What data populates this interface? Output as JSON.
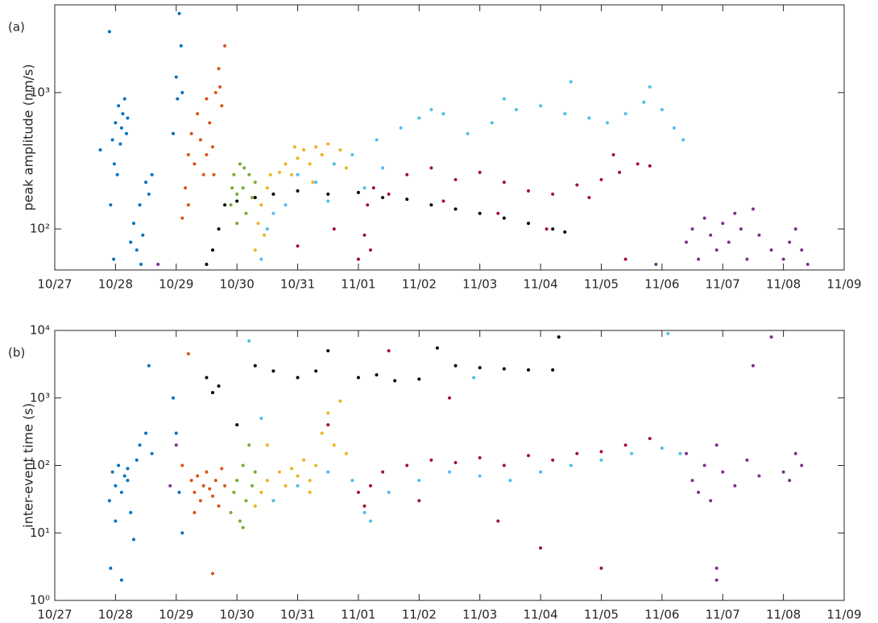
{
  "chart_data": [
    {
      "type": "scatter",
      "panel_label": "(a)",
      "ylabel": "peak amplitude (nm/s)",
      "log_y": true,
      "xlim": [
        27,
        40
      ],
      "xticks": [
        {
          "value": 27,
          "label": "10/27"
        },
        {
          "value": 28,
          "label": "10/28"
        },
        {
          "value": 29,
          "label": "10/29"
        },
        {
          "value": 30,
          "label": "10/30"
        },
        {
          "value": 31,
          "label": "10/31"
        },
        {
          "value": 32,
          "label": "11/01"
        },
        {
          "value": 33,
          "label": "11/02"
        },
        {
          "value": 34,
          "label": "11/03"
        },
        {
          "value": 35,
          "label": "11/04"
        },
        {
          "value": 36,
          "label": "11/05"
        },
        {
          "value": 37,
          "label": "11/06"
        },
        {
          "value": 38,
          "label": "11/07"
        },
        {
          "value": 39,
          "label": "11/08"
        },
        {
          "value": 40,
          "label": "11/09"
        }
      ],
      "ylim": [
        50,
        4400
      ],
      "yticks": [
        {
          "value": 100,
          "label": "10²"
        },
        {
          "value": 1000,
          "label": "10³"
        }
      ],
      "series": [
        {
          "color": "#0072BD",
          "x": [
            27.75,
            27.9,
            27.92,
            27.95,
            27.98,
            28.0,
            28.03,
            28.05,
            28.08,
            28.1,
            28.12,
            28.15,
            28.18,
            28.2,
            28.25,
            28.3,
            28.35,
            28.4,
            28.45,
            28.5,
            28.55,
            28.6,
            28.95,
            29.0,
            29.02,
            29.05,
            29.08,
            29.1,
            27.97,
            28.42
          ],
          "values": [
            380,
            2800,
            150,
            450,
            300,
            600,
            250,
            800,
            420,
            550,
            700,
            900,
            500,
            650,
            80,
            110,
            70,
            150,
            90,
            220,
            180,
            250,
            500,
            1300,
            900,
            3800,
            2200,
            1000,
            60,
            55
          ]
        },
        {
          "color": "#D95319",
          "x": [
            29.1,
            29.15,
            29.2,
            29.25,
            29.3,
            29.35,
            29.4,
            29.45,
            29.5,
            29.55,
            29.6,
            29.65,
            29.7,
            29.75,
            29.8,
            29.2,
            29.5,
            29.62,
            29.72
          ],
          "values": [
            120,
            200,
            350,
            500,
            300,
            700,
            450,
            250,
            900,
            600,
            400,
            1000,
            1500,
            800,
            2200,
            150,
            350,
            250,
            1100
          ]
        },
        {
          "color": "#77AC30",
          "x": [
            29.9,
            29.95,
            30.0,
            30.05,
            30.1,
            30.15,
            30.2,
            30.0,
            30.25,
            30.3,
            29.92,
            30.12
          ],
          "values": [
            150,
            250,
            180,
            300,
            200,
            130,
            250,
            110,
            170,
            220,
            200,
            280
          ]
        },
        {
          "color": "#EDB120",
          "x": [
            30.3,
            30.35,
            30.4,
            30.5,
            30.6,
            30.7,
            30.8,
            30.9,
            31.0,
            31.1,
            31.2,
            31.3,
            31.4,
            31.5,
            31.6,
            31.7,
            31.8,
            30.45,
            30.55,
            30.95,
            31.25
          ],
          "values": [
            70,
            110,
            150,
            200,
            180,
            260,
            300,
            250,
            330,
            380,
            300,
            400,
            350,
            420,
            300,
            380,
            280,
            90,
            250,
            400,
            220
          ]
        },
        {
          "color": "#4DBEEE",
          "x": [
            30.4,
            30.5,
            30.6,
            30.8,
            31.0,
            31.3,
            31.6,
            31.9,
            32.1,
            32.4,
            32.7,
            33.0,
            33.4,
            33.8,
            34.2,
            34.6,
            35.0,
            35.4,
            35.8,
            36.1,
            36.4,
            36.7,
            37.0,
            37.2,
            37.35,
            33.2,
            34.4,
            35.5,
            36.8,
            32.3,
            31.5
          ],
          "values": [
            60,
            100,
            130,
            150,
            250,
            220,
            300,
            350,
            200,
            280,
            550,
            650,
            700,
            500,
            600,
            750,
            800,
            700,
            650,
            600,
            700,
            850,
            750,
            550,
            450,
            750,
            900,
            1200,
            1100,
            450,
            160
          ]
        },
        {
          "color": "#A2142F",
          "x": [
            32.0,
            32.1,
            32.15,
            32.2,
            32.25,
            32.5,
            32.8,
            33.2,
            33.6,
            34.0,
            34.4,
            34.8,
            35.2,
            35.6,
            36.0,
            36.3,
            36.6,
            36.8,
            34.3,
            35.1,
            36.4,
            31.6,
            33.4,
            35.8,
            36.2,
            31.0
          ],
          "values": [
            60,
            90,
            150,
            70,
            200,
            180,
            250,
            280,
            230,
            260,
            220,
            190,
            180,
            210,
            230,
            260,
            300,
            290,
            130,
            100,
            60,
            100,
            160,
            170,
            350,
            75
          ]
        },
        {
          "color": "#000000",
          "x": [
            29.5,
            29.6,
            29.7,
            29.8,
            30.0,
            30.3,
            30.6,
            31.0,
            31.5,
            32.0,
            32.4,
            32.8,
            33.2,
            33.6,
            34.0,
            34.4,
            34.8,
            35.2,
            35.4
          ],
          "values": [
            55,
            70,
            100,
            150,
            160,
            170,
            180,
            190,
            180,
            185,
            170,
            165,
            150,
            140,
            130,
            120,
            110,
            100,
            95
          ]
        },
        {
          "color": "#7E2F8E",
          "x": [
            28.7,
            36.9,
            37.4,
            37.5,
            37.6,
            37.7,
            37.8,
            37.9,
            38.0,
            38.1,
            38.2,
            38.3,
            38.4,
            38.5,
            38.6,
            38.8,
            39.0,
            39.1,
            39.2,
            39.3,
            39.4
          ],
          "values": [
            55,
            55,
            80,
            100,
            60,
            120,
            90,
            70,
            110,
            80,
            130,
            100,
            60,
            140,
            90,
            70,
            60,
            80,
            100,
            70,
            55
          ]
        }
      ]
    },
    {
      "type": "scatter",
      "panel_label": "(b)",
      "ylabel": "inter-event time (s)",
      "log_y": true,
      "xlim": [
        27,
        40
      ],
      "xticks": [
        {
          "value": 27,
          "label": "10/27"
        },
        {
          "value": 28,
          "label": "10/28"
        },
        {
          "value": 29,
          "label": "10/29"
        },
        {
          "value": 30,
          "label": "10/30"
        },
        {
          "value": 31,
          "label": "10/31"
        },
        {
          "value": 32,
          "label": "11/01"
        },
        {
          "value": 33,
          "label": "11/02"
        },
        {
          "value": 34,
          "label": "11/03"
        },
        {
          "value": 35,
          "label": "11/04"
        },
        {
          "value": 36,
          "label": "11/05"
        },
        {
          "value": 37,
          "label": "11/06"
        },
        {
          "value": 38,
          "label": "11/07"
        },
        {
          "value": 39,
          "label": "11/08"
        },
        {
          "value": 40,
          "label": "11/09"
        }
      ],
      "ylim": [
        1,
        10000
      ],
      "yticks": [
        {
          "value": 1,
          "label": "10⁰"
        },
        {
          "value": 10,
          "label": "10¹"
        },
        {
          "value": 100,
          "label": "10²"
        },
        {
          "value": 1000,
          "label": "10³"
        },
        {
          "value": 10000,
          "label": "10⁴"
        }
      ],
      "series": [
        {
          "color": "#0072BD",
          "x": [
            27.9,
            27.95,
            28.0,
            28.05,
            28.1,
            28.15,
            28.2,
            28.25,
            28.3,
            28.35,
            28.4,
            28.5,
            28.55,
            28.6,
            27.92,
            28.1,
            28.0,
            28.95,
            29.0,
            29.05,
            29.1,
            28.2
          ],
          "values": [
            30,
            80,
            50,
            100,
            40,
            70,
            60,
            20,
            8,
            120,
            200,
            300,
            3000,
            150,
            3,
            2,
            15,
            1000,
            300,
            40,
            10,
            90
          ]
        },
        {
          "color": "#D95319",
          "x": [
            29.1,
            29.2,
            29.25,
            29.3,
            29.35,
            29.4,
            29.45,
            29.5,
            29.55,
            29.6,
            29.65,
            29.7,
            29.75,
            29.8,
            29.3,
            29.6
          ],
          "values": [
            100,
            4500,
            60,
            40,
            70,
            30,
            50,
            80,
            45,
            35,
            60,
            25,
            90,
            50,
            20,
            2.5
          ]
        },
        {
          "color": "#77AC30",
          "x": [
            29.9,
            29.95,
            30.0,
            30.05,
            30.1,
            30.15,
            30.2,
            30.25,
            30.3,
            30.1
          ],
          "values": [
            20,
            40,
            60,
            15,
            100,
            30,
            200,
            50,
            80,
            12
          ]
        },
        {
          "color": "#EDB120",
          "x": [
            30.3,
            30.4,
            30.5,
            30.6,
            30.7,
            30.8,
            30.9,
            31.0,
            31.1,
            31.2,
            31.3,
            31.4,
            31.5,
            31.6,
            31.7,
            31.8,
            30.5,
            31.2
          ],
          "values": [
            25,
            40,
            60,
            30,
            80,
            50,
            90,
            70,
            120,
            60,
            100,
            300,
            600,
            200,
            900,
            150,
            200,
            40
          ]
        },
        {
          "color": "#4DBEEE",
          "x": [
            30.4,
            30.6,
            31.0,
            31.5,
            31.9,
            32.1,
            32.2,
            32.5,
            33.0,
            33.5,
            34.0,
            34.5,
            35.0,
            35.5,
            36.0,
            36.5,
            37.0,
            37.3,
            30.2,
            37.1,
            33.9
          ],
          "values": [
            500,
            30,
            50,
            80,
            60,
            20,
            15,
            40,
            60,
            80,
            70,
            60,
            80,
            100,
            120,
            150,
            180,
            150,
            7000,
            9000,
            2000
          ]
        },
        {
          "color": "#A2142F",
          "x": [
            32.0,
            32.1,
            32.2,
            32.4,
            32.8,
            33.2,
            33.6,
            34.0,
            34.4,
            34.8,
            35.2,
            35.6,
            36.0,
            36.4,
            36.8,
            33.0,
            35.0,
            36.0,
            34.3,
            31.5,
            32.5,
            33.5
          ],
          "values": [
            40,
            25,
            50,
            80,
            100,
            120,
            110,
            130,
            100,
            140,
            120,
            150,
            160,
            200,
            250,
            30,
            6,
            3,
            15,
            400,
            5000,
            1000
          ]
        },
        {
          "color": "#000000",
          "x": [
            29.5,
            29.6,
            29.7,
            30.0,
            30.3,
            30.6,
            31.0,
            31.3,
            31.5,
            32.0,
            32.3,
            32.6,
            33.0,
            33.3,
            33.6,
            34.0,
            34.4,
            34.8,
            35.2,
            35.3
          ],
          "values": [
            2000,
            1200,
            1500,
            400,
            3000,
            2500,
            2000,
            2500,
            5000,
            2000,
            2200,
            1800,
            1900,
            5500,
            3000,
            2800,
            2700,
            2600,
            2600,
            8000
          ]
        },
        {
          "color": "#7E2F8E",
          "x": [
            28.9,
            29.0,
            37.4,
            37.5,
            37.6,
            37.7,
            37.8,
            37.9,
            38.0,
            38.2,
            38.4,
            38.5,
            38.6,
            38.8,
            39.0,
            39.1,
            39.2,
            39.3,
            37.9,
            37.9
          ],
          "values": [
            50,
            200,
            150,
            60,
            40,
            100,
            30,
            200,
            80,
            50,
            120,
            3000,
            70,
            8000,
            80,
            60,
            150,
            100,
            3,
            2
          ]
        }
      ]
    }
  ]
}
